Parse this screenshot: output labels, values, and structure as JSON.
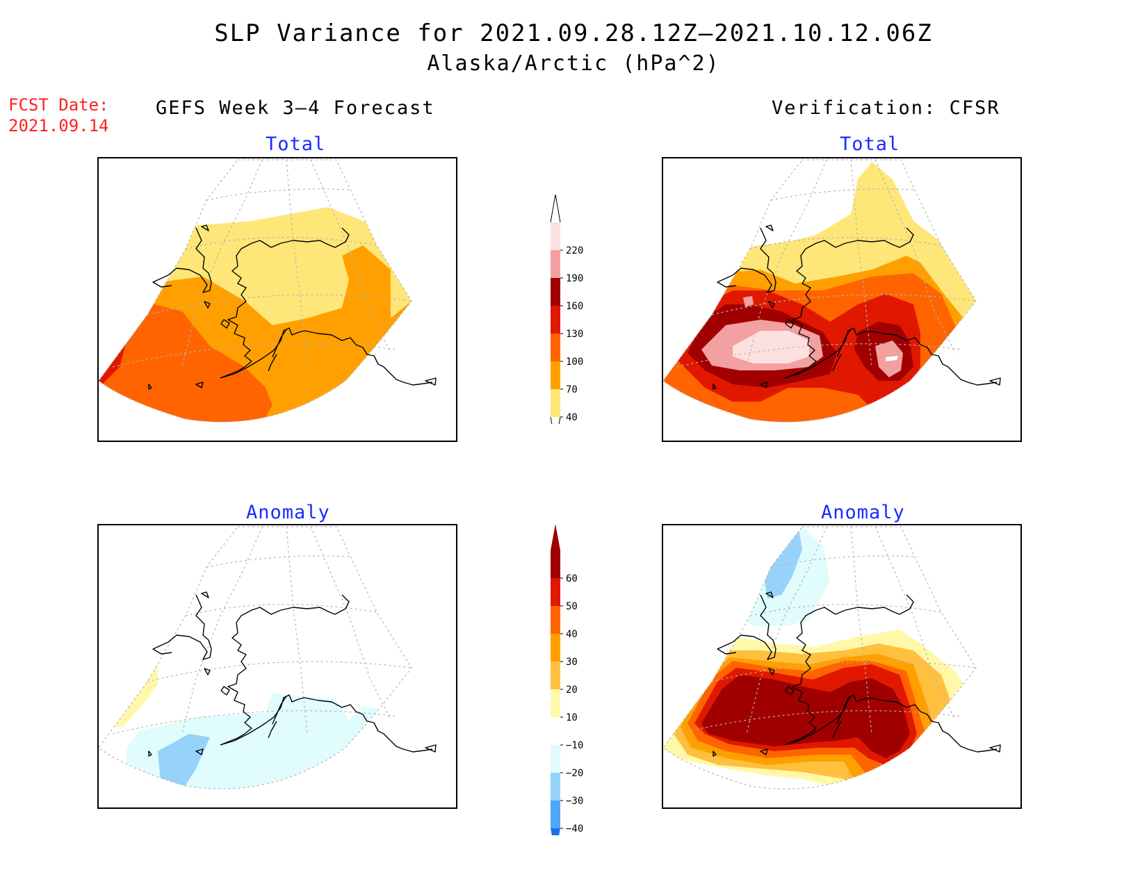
{
  "title_line1": "SLP Variance for 2021.09.28.12Z–2021.10.12.06Z",
  "title_line2": "Alaska/Arctic (hPa^2)",
  "forecast_date_label": "FCST Date:",
  "forecast_date": "2021.09.14",
  "left_column_title": "GEFS Week 3–4 Forecast",
  "right_column_title": "Verification: CFSR",
  "panels": {
    "forecast_total": {
      "label": "Total"
    },
    "verification_total": {
      "label": "Total"
    },
    "forecast_anomaly": {
      "label": "Anomaly"
    },
    "verification_anomaly": {
      "label": "Anomaly"
    }
  },
  "total_colorbar": {
    "levels": [
      "220",
      "190",
      "160",
      "130",
      "100",
      "70",
      "40"
    ],
    "colors": [
      "#fde0e0",
      "#f2a0a0",
      "#a00000",
      "#e01800",
      "#ff6400",
      "#ffa000",
      "#ffe678"
    ]
  },
  "anomaly_colorbar": {
    "levels": [
      "60",
      "50",
      "40",
      "30",
      "20",
      "10",
      "−10",
      "−20",
      "−30",
      "−40"
    ],
    "colors": [
      "#a00000",
      "#e01800",
      "#ff6400",
      "#ffa000",
      "#ffc040",
      "#fff8a8",
      "#ffffff",
      "#e0fcfc",
      "#96d2fa",
      "#50a5f5",
      "#1e6ee6"
    ]
  },
  "map_colors": {
    "coastline": "#000000",
    "graticule": "#b4b4b4"
  }
}
